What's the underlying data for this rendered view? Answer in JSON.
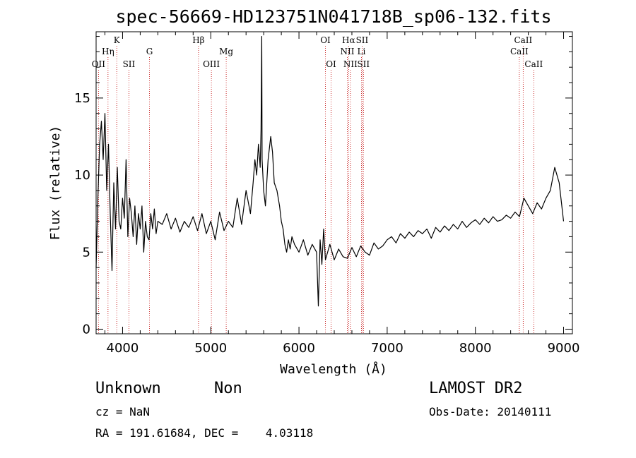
{
  "chart_data": {
    "type": "line",
    "title": "spec-56669-HD123751N041718B_sp06-132.fits",
    "xlabel": "Wavelength (Å)",
    "ylabel": "Flux (relative)",
    "xlim": [
      3700,
      9100
    ],
    "ylim": [
      -0.3,
      19.3
    ],
    "x_ticks": [
      4000,
      5000,
      6000,
      7000,
      8000,
      9000
    ],
    "y_ticks": [
      0,
      5,
      10,
      15
    ],
    "grid": false,
    "series": [
      {
        "x": [
          3700,
          3720,
          3740,
          3760,
          3780,
          3800,
          3820,
          3840,
          3860,
          3880,
          3900,
          3920,
          3940,
          3960,
          3980,
          4000,
          4020,
          4040,
          4060,
          4080,
          4100,
          4120,
          4140,
          4160,
          4180,
          4200,
          4220,
          4240,
          4260,
          4280,
          4300,
          4320,
          4340,
          4360,
          4380,
          4400,
          4450,
          4500,
          4550,
          4600,
          4650,
          4700,
          4750,
          4800,
          4850,
          4900,
          4950,
          5000,
          5050,
          5100,
          5150,
          5200,
          5250,
          5300,
          5350,
          5400,
          5450,
          5480,
          5500,
          5520,
          5540,
          5560,
          5570,
          5578,
          5582,
          5600,
          5620,
          5650,
          5680,
          5700,
          5720,
          5750,
          5780,
          5800,
          5820,
          5840,
          5860,
          5880,
          5900,
          5920,
          5950,
          6000,
          6050,
          6100,
          6150,
          6200,
          6220,
          6240,
          6260,
          6280,
          6300,
          6350,
          6400,
          6450,
          6500,
          6550,
          6600,
          6650,
          6700,
          6750,
          6800,
          6850,
          6900,
          6950,
          7000,
          7050,
          7100,
          7150,
          7200,
          7250,
          7300,
          7350,
          7400,
          7450,
          7500,
          7550,
          7600,
          7650,
          7700,
          7750,
          7800,
          7850,
          7900,
          7950,
          8000,
          8050,
          8100,
          8150,
          8200,
          8250,
          8300,
          8350,
          8400,
          8450,
          8500,
          8550,
          8600,
          8650,
          8700,
          8750,
          8800,
          8850,
          8900,
          8950,
          9000
        ],
        "y": [
          4.0,
          8.5,
          12.0,
          13.5,
          11.0,
          14.0,
          9.0,
          12.0,
          7.5,
          3.8,
          9.5,
          6.5,
          10.5,
          7.0,
          6.5,
          8.5,
          7.2,
          11.0,
          6.0,
          8.5,
          7.5,
          6.0,
          8.0,
          5.5,
          7.5,
          6.5,
          8.0,
          5.0,
          7.0,
          6.0,
          5.8,
          7.5,
          6.5,
          7.8,
          6.2,
          7.0,
          6.8,
          7.5,
          6.5,
          7.2,
          6.3,
          7.0,
          6.6,
          7.3,
          6.4,
          7.5,
          6.2,
          7.0,
          5.8,
          7.6,
          6.4,
          7.0,
          6.6,
          8.5,
          6.8,
          9.0,
          7.5,
          9.5,
          11.0,
          10.0,
          12.0,
          10.5,
          13.0,
          19.0,
          11.0,
          9.0,
          8.0,
          11.0,
          12.5,
          11.5,
          9.5,
          9.0,
          8.0,
          7.0,
          6.5,
          5.5,
          5.0,
          5.8,
          5.2,
          6.0,
          5.5,
          5.0,
          5.8,
          4.8,
          5.5,
          5.0,
          1.5,
          5.8,
          4.2,
          6.5,
          4.5,
          5.5,
          4.5,
          5.2,
          4.7,
          4.6,
          5.3,
          4.7,
          5.4,
          5.0,
          4.8,
          5.6,
          5.2,
          5.4,
          5.8,
          6.0,
          5.6,
          6.2,
          5.9,
          6.3,
          6.0,
          6.4,
          6.2,
          6.5,
          5.9,
          6.6,
          6.3,
          6.7,
          6.4,
          6.8,
          6.5,
          7.0,
          6.6,
          6.9,
          7.1,
          6.8,
          7.2,
          6.9,
          7.3,
          7.0,
          7.1,
          7.4,
          7.2,
          7.6,
          7.3,
          8.5,
          8.0,
          7.5,
          8.2,
          7.8,
          8.5,
          9.0,
          10.5,
          9.5,
          7.0
        ]
      }
    ],
    "reference_lines": [
      {
        "label": "OII",
        "x": 3727,
        "row": 3
      },
      {
        "label": "Hη",
        "x": 3835,
        "row": 2
      },
      {
        "label": "K",
        "x": 3934,
        "row": 1
      },
      {
        "label": "SII",
        "x": 4072,
        "row": 3
      },
      {
        "label": "G",
        "x": 4305,
        "row": 2
      },
      {
        "label": "Hβ",
        "x": 4861,
        "row": 1
      },
      {
        "label": "OIII",
        "x": 5007,
        "row": 3
      },
      {
        "label": "Mg",
        "x": 5175,
        "row": 2
      },
      {
        "label": "OI",
        "x": 6300,
        "row": 1
      },
      {
        "label": "OI",
        "x": 6364,
        "row": 3
      },
      {
        "label": "Hα",
        "x": 6563,
        "row": 1
      },
      {
        "label": "NII",
        "x": 6548,
        "row": 2
      },
      {
        "label": "NII",
        "x": 6583,
        "row": 3
      },
      {
        "label": "SII",
        "x": 6716,
        "row": 1
      },
      {
        "label": "Li",
        "x": 6708,
        "row": 2
      },
      {
        "label": "SII",
        "x": 6731,
        "row": 3
      },
      {
        "label": "CaII",
        "x": 8542,
        "row": 1
      },
      {
        "label": "CaII",
        "x": 8498,
        "row": 2
      },
      {
        "label": "CaII",
        "x": 8662,
        "row": 3
      }
    ]
  },
  "info": {
    "class": "Unknown",
    "subclass": "Non",
    "survey": "LAMOST DR2",
    "cz": "cz = NaN",
    "obs_date": "Obs-Date: 20140111",
    "coords": "RA = 191.61684, DEC =    4.03118"
  }
}
